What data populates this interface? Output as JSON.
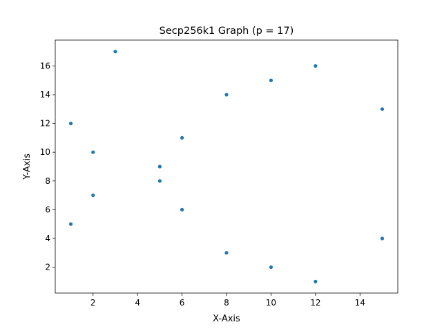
{
  "chart_data": {
    "type": "scatter",
    "title": "Secp256k1 Graph (p = 17)",
    "xlabel": "X-Axis",
    "ylabel": "Y-Axis",
    "xlim": [
      0.3,
      15.7
    ],
    "ylim": [
      0.2,
      17.8
    ],
    "xticks": [
      2,
      4,
      6,
      8,
      10,
      12,
      14
    ],
    "yticks": [
      2,
      4,
      6,
      8,
      10,
      12,
      14,
      16
    ],
    "grid": false,
    "marker_color": "#1f77b4",
    "points": [
      {
        "x": 1,
        "y": 5
      },
      {
        "x": 1,
        "y": 12
      },
      {
        "x": 2,
        "y": 7
      },
      {
        "x": 2,
        "y": 10
      },
      {
        "x": 3,
        "y": 17
      },
      {
        "x": 5,
        "y": 8
      },
      {
        "x": 5,
        "y": 9
      },
      {
        "x": 6,
        "y": 6
      },
      {
        "x": 6,
        "y": 11
      },
      {
        "x": 8,
        "y": 3
      },
      {
        "x": 8,
        "y": 14
      },
      {
        "x": 10,
        "y": 2
      },
      {
        "x": 10,
        "y": 15
      },
      {
        "x": 12,
        "y": 1
      },
      {
        "x": 12,
        "y": 16
      },
      {
        "x": 15,
        "y": 4
      },
      {
        "x": 15,
        "y": 13
      }
    ]
  }
}
